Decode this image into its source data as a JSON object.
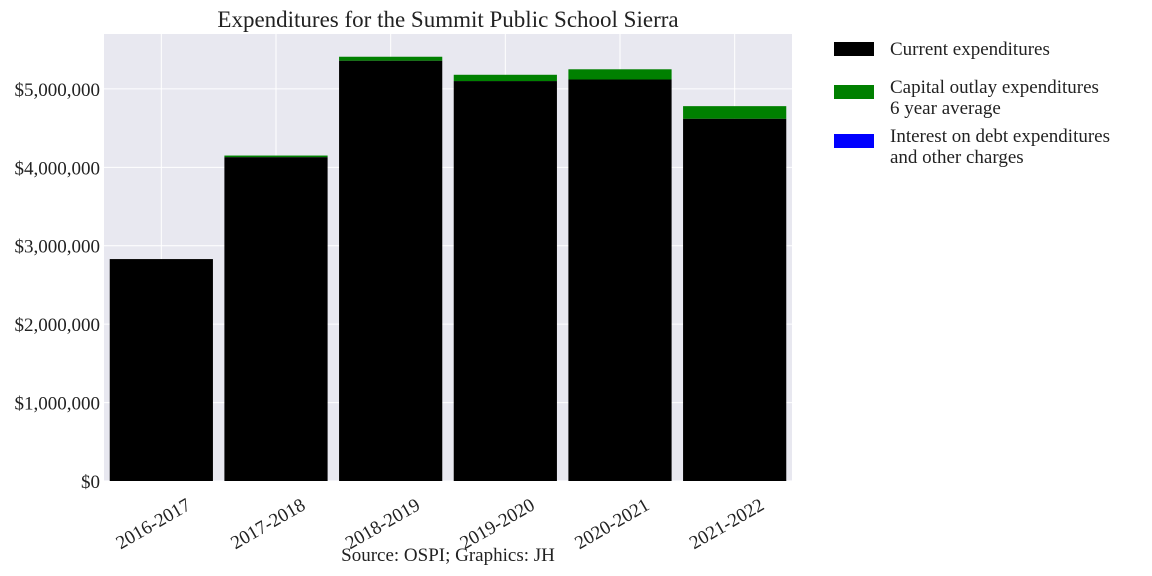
{
  "chart_data": {
    "type": "bar",
    "stacked": true,
    "title": "Expenditures for the Summit Public School Sierra",
    "caption": "Source: OSPI; Graphics: JH",
    "xlabel": "",
    "ylabel": "",
    "categories": [
      "2016-2017",
      "2017-2018",
      "2018-2019",
      "2019-2020",
      "2020-2021",
      "2021-2022"
    ],
    "series": [
      {
        "name": "Current expenditures",
        "color": "#000000",
        "values": [
          2830000,
          4130000,
          5360000,
          5100000,
          5120000,
          4620000
        ]
      },
      {
        "name": "Capital outlay expenditures",
        "color": "#008000",
        "values": [
          0,
          20000,
          50000,
          80000,
          130000,
          160000
        ]
      },
      {
        "name": "Interest on debt expenditures",
        "color": "#0000ff",
        "values": [
          0,
          0,
          0,
          0,
          0,
          0
        ]
      }
    ],
    "ylim": [
      0,
      5700000
    ],
    "yticks": [
      0,
      1000000,
      2000000,
      3000000,
      4000000,
      5000000
    ],
    "ytick_labels": [
      "$0",
      "$1,000,000",
      "$2,000,000",
      "$3,000,000",
      "$4,000,000",
      "$5,000,000"
    ],
    "grid": true,
    "legend": {
      "placement": "outside-right",
      "entries": [
        {
          "line1": "Current expenditures",
          "line2": "",
          "color": "#000000"
        },
        {
          "line1": "Capital outlay expenditures",
          "line2": "6 year average",
          "color": "#008000"
        },
        {
          "line1": "Interest on debt expenditures",
          "line2": "and other charges",
          "color": "#0000ff"
        }
      ]
    },
    "plot_background": "#e8e8f0",
    "grid_color": "#ffffff"
  }
}
